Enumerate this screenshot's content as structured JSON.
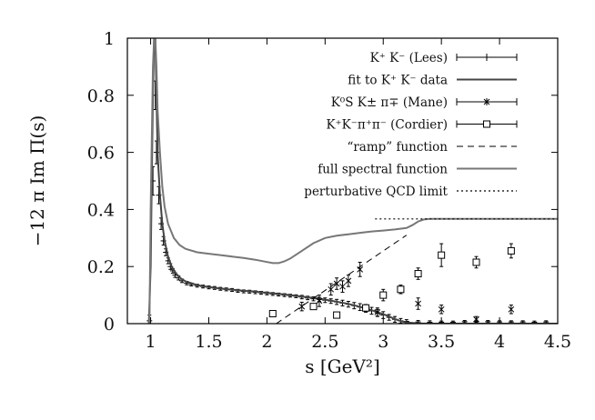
{
  "chart_data": {
    "type": "line",
    "title": "",
    "xlabel": "s [GeV²]",
    "ylabel": "−12 π Im Π(s)",
    "xlim": [
      0.8,
      4.5
    ],
    "ylim": [
      0,
      1
    ],
    "xticks": [
      "1",
      "1.5",
      "2",
      "2.5",
      "3",
      "3.5",
      "4",
      "4.5"
    ],
    "yticks": [
      "0",
      "0.2",
      "0.4",
      "0.6",
      "0.8",
      "1"
    ],
    "x_tick_values": [
      1,
      1.5,
      2,
      2.5,
      3,
      3.5,
      4,
      4.5
    ],
    "y_tick_values": [
      0,
      0.2,
      0.4,
      0.6,
      0.8,
      1
    ],
    "grid": false,
    "legend_position": "top-right",
    "series": [
      {
        "name": "K⁺ K⁻ (Lees)",
        "style": "errorbar-plus",
        "color": "#000000",
        "points": [
          [
            0.99,
            0.01,
            0.02
          ],
          [
            1.02,
            0.5,
            0.05
          ],
          [
            1.04,
            0.8,
            0.05
          ],
          [
            1.05,
            0.6,
            0.04
          ],
          [
            1.07,
            0.45,
            0.03
          ],
          [
            1.09,
            0.35,
            0.02
          ],
          [
            1.11,
            0.29,
            0.015
          ],
          [
            1.13,
            0.25,
            0.012
          ],
          [
            1.15,
            0.22,
            0.01
          ],
          [
            1.17,
            0.2,
            0.01
          ],
          [
            1.19,
            0.185,
            0.008
          ],
          [
            1.21,
            0.17,
            0.008
          ],
          [
            1.24,
            0.16,
            0.007
          ],
          [
            1.27,
            0.15,
            0.006
          ],
          [
            1.31,
            0.142,
            0.006
          ],
          [
            1.35,
            0.137,
            0.005
          ],
          [
            1.4,
            0.133,
            0.005
          ],
          [
            1.45,
            0.13,
            0.005
          ],
          [
            1.5,
            0.127,
            0.005
          ],
          [
            1.55,
            0.125,
            0.005
          ],
          [
            1.6,
            0.122,
            0.005
          ],
          [
            1.65,
            0.12,
            0.005
          ],
          [
            1.7,
            0.118,
            0.005
          ],
          [
            1.75,
            0.115,
            0.005
          ],
          [
            1.8,
            0.113,
            0.005
          ],
          [
            1.85,
            0.112,
            0.005
          ],
          [
            1.9,
            0.11,
            0.005
          ],
          [
            1.95,
            0.108,
            0.005
          ],
          [
            2.0,
            0.106,
            0.005
          ],
          [
            2.05,
            0.104,
            0.005
          ],
          [
            2.1,
            0.102,
            0.005
          ],
          [
            2.15,
            0.1,
            0.005
          ],
          [
            2.2,
            0.098,
            0.005
          ],
          [
            2.25,
            0.096,
            0.005
          ],
          [
            2.3,
            0.093,
            0.006
          ],
          [
            2.35,
            0.09,
            0.006
          ],
          [
            2.4,
            0.087,
            0.007
          ],
          [
            2.45,
            0.085,
            0.007
          ],
          [
            2.5,
            0.082,
            0.008
          ],
          [
            2.55,
            0.079,
            0.008
          ],
          [
            2.6,
            0.076,
            0.009
          ],
          [
            2.65,
            0.072,
            0.01
          ],
          [
            2.7,
            0.068,
            0.01
          ],
          [
            2.75,
            0.063,
            0.011
          ],
          [
            2.8,
            0.058,
            0.012
          ],
          [
            2.85,
            0.052,
            0.012
          ],
          [
            2.9,
            0.045,
            0.012
          ],
          [
            2.95,
            0.038,
            0.012
          ],
          [
            3.0,
            0.03,
            0.012
          ],
          [
            3.05,
            0.022,
            0.01
          ],
          [
            3.1,
            0.015,
            0.01
          ],
          [
            3.15,
            0.01,
            0.008
          ],
          [
            3.2,
            0.008,
            0.006
          ],
          [
            3.3,
            0.006,
            0.005
          ],
          [
            3.4,
            0.005,
            0.005
          ],
          [
            3.5,
            0.005,
            0.004
          ],
          [
            3.6,
            0.005,
            0.004
          ],
          [
            3.7,
            0.007,
            0.004
          ],
          [
            3.8,
            0.008,
            0.004
          ],
          [
            3.9,
            0.007,
            0.004
          ],
          [
            4.0,
            0.006,
            0.004
          ],
          [
            4.1,
            0.006,
            0.004
          ],
          [
            4.2,
            0.006,
            0.004
          ],
          [
            4.3,
            0.005,
            0.004
          ],
          [
            4.4,
            0.006,
            0.004
          ]
        ]
      },
      {
        "name": "fit to K⁺ K⁻ data",
        "style": "line",
        "color": "#444444",
        "x": [
          0.985,
          1.0,
          1.01,
          1.02,
          1.03,
          1.04,
          1.05,
          1.06,
          1.08,
          1.1,
          1.12,
          1.15,
          1.18,
          1.22,
          1.26,
          1.3,
          1.4,
          1.5,
          1.6,
          1.7,
          1.8,
          1.9,
          2.0,
          2.1,
          2.2,
          2.3,
          2.4,
          2.5,
          2.6,
          2.7,
          2.8,
          2.9,
          3.0,
          3.05,
          3.1,
          3.15,
          3.2,
          3.3,
          3.4,
          3.6,
          3.8,
          4.0,
          4.2,
          4.5
        ],
        "y": [
          0.0,
          0.2,
          0.5,
          0.8,
          1.0,
          1.0,
          0.8,
          0.6,
          0.45,
          0.35,
          0.29,
          0.235,
          0.2,
          0.175,
          0.158,
          0.148,
          0.135,
          0.128,
          0.123,
          0.119,
          0.115,
          0.112,
          0.108,
          0.104,
          0.1,
          0.095,
          0.09,
          0.084,
          0.077,
          0.069,
          0.059,
          0.047,
          0.033,
          0.025,
          0.016,
          0.009,
          0.004,
          0.001,
          0.0,
          0.0,
          0.0,
          0.0,
          0.0,
          0.0
        ]
      },
      {
        "name": "K⁰S K± π∓ (Mane)",
        "style": "errorbar-cross",
        "color": "#000000",
        "points": [
          [
            2.3,
            0.06,
            0.015
          ],
          [
            2.45,
            0.08,
            0.02
          ],
          [
            2.55,
            0.12,
            0.02
          ],
          [
            2.6,
            0.14,
            0.02
          ],
          [
            2.65,
            0.13,
            0.02
          ],
          [
            2.7,
            0.15,
            0.02
          ],
          [
            2.8,
            0.19,
            0.025
          ],
          [
            2.95,
            0.04,
            0.015
          ],
          [
            3.3,
            0.07,
            0.02
          ],
          [
            3.5,
            0.05,
            0.015
          ],
          [
            3.8,
            0.015,
            0.01
          ],
          [
            4.1,
            0.05,
            0.015
          ]
        ]
      },
      {
        "name": "K⁺K⁻π⁺π⁻ (Cordier)",
        "style": "errorbar-square",
        "color": "#000000",
        "points": [
          [
            2.05,
            0.035,
            0.01
          ],
          [
            2.4,
            0.06,
            0.01
          ],
          [
            2.6,
            0.03,
            0.008
          ],
          [
            2.85,
            0.055,
            0.012
          ],
          [
            3.0,
            0.1,
            0.02
          ],
          [
            3.15,
            0.12,
            0.015
          ],
          [
            3.3,
            0.175,
            0.02
          ],
          [
            3.5,
            0.24,
            0.04
          ],
          [
            3.8,
            0.215,
            0.02
          ],
          [
            4.1,
            0.255,
            0.025
          ]
        ]
      },
      {
        "name": "“ramp” function",
        "style": "dashed",
        "color": "#000000",
        "x": [
          2.08,
          3.2
        ],
        "y": [
          0.0,
          0.31
        ]
      },
      {
        "name": "full spectral function",
        "style": "line",
        "color": "#777777",
        "x": [
          0.99,
          1.0,
          1.02,
          1.03,
          1.04,
          1.05,
          1.06,
          1.08,
          1.1,
          1.12,
          1.15,
          1.2,
          1.25,
          1.3,
          1.4,
          1.5,
          1.6,
          1.7,
          1.8,
          1.9,
          2.0,
          2.05,
          2.1,
          2.15,
          2.2,
          2.3,
          2.4,
          2.5,
          2.6,
          2.7,
          2.8,
          2.9,
          3.0,
          3.1,
          3.2,
          3.25,
          3.3,
          3.35,
          3.4,
          3.6,
          3.8,
          4.0,
          4.2,
          4.5
        ],
        "y": [
          0.0,
          0.4,
          0.9,
          1.0,
          1.0,
          0.9,
          0.75,
          0.6,
          0.48,
          0.41,
          0.35,
          0.3,
          0.275,
          0.262,
          0.25,
          0.245,
          0.24,
          0.235,
          0.23,
          0.224,
          0.216,
          0.212,
          0.212,
          0.218,
          0.228,
          0.255,
          0.282,
          0.3,
          0.308,
          0.313,
          0.318,
          0.323,
          0.326,
          0.33,
          0.335,
          0.345,
          0.358,
          0.365,
          0.367,
          0.367,
          0.367,
          0.367,
          0.367,
          0.367
        ]
      },
      {
        "name": "perturbative QCD limit",
        "style": "dotted",
        "color": "#000000",
        "x": [
          2.93,
          4.5
        ],
        "y": [
          0.367,
          0.367
        ]
      }
    ]
  }
}
